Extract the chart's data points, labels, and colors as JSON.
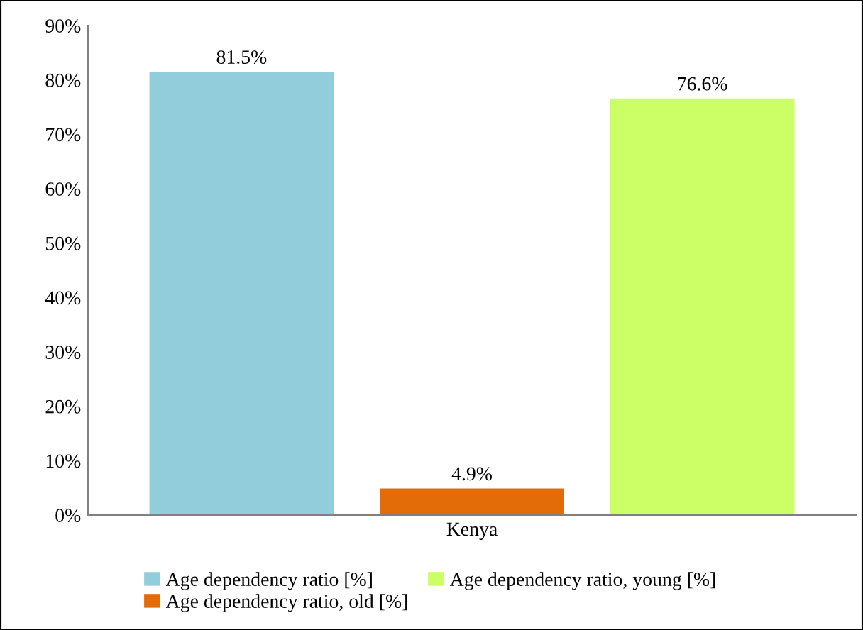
{
  "chart_data": {
    "type": "bar",
    "categories": [
      "Kenya"
    ],
    "series": [
      {
        "name": "Age dependency ratio [%]",
        "color": "#92cddc",
        "values": [
          81.5
        ],
        "value_labels": [
          "81.5%"
        ]
      },
      {
        "name": "Age dependency ratio, old [%]",
        "color": "#e36c09",
        "values": [
          4.9
        ],
        "value_labels": [
          "4.9%"
        ]
      },
      {
        "name": "Age dependency ratio, young [%]",
        "color": "#ccff66",
        "values": [
          76.6
        ],
        "value_labels": [
          "76.6%"
        ]
      }
    ],
    "ylim": [
      0,
      90
    ],
    "yticks": [
      {
        "value": 0,
        "label": "0%"
      },
      {
        "value": 10,
        "label": "10%"
      },
      {
        "value": 20,
        "label": "20%"
      },
      {
        "value": 30,
        "label": "30%"
      },
      {
        "value": 40,
        "label": "40%"
      },
      {
        "value": 50,
        "label": "50%"
      },
      {
        "value": 60,
        "label": "60%"
      },
      {
        "value": 70,
        "label": "70%"
      },
      {
        "value": 80,
        "label": "80%"
      },
      {
        "value": 90,
        "label": "90%"
      }
    ],
    "grid": false,
    "legend": "bottom"
  }
}
